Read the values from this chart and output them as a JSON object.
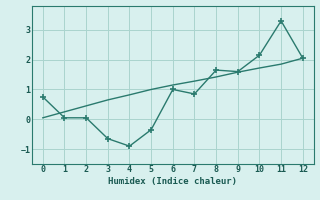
{
  "x": [
    0,
    1,
    2,
    3,
    4,
    5,
    6,
    7,
    8,
    9,
    10,
    11,
    12
  ],
  "y_curve": [
    0.75,
    0.05,
    0.05,
    -0.65,
    -0.9,
    -0.35,
    1.0,
    0.85,
    1.65,
    1.6,
    2.15,
    3.3,
    2.05
  ],
  "y_trend": [
    0.05,
    0.25,
    0.45,
    0.65,
    0.82,
    1.0,
    1.15,
    1.28,
    1.42,
    1.58,
    1.72,
    1.85,
    2.05
  ],
  "line_color": "#2a7a6e",
  "bg_color": "#d8f0ee",
  "grid_color": "#aad4ce",
  "xlabel": "Humidex (Indice chaleur)",
  "ylim": [
    -1.5,
    3.8
  ],
  "xlim": [
    -0.5,
    12.5
  ],
  "yticks": [
    -1,
    0,
    1,
    2,
    3
  ],
  "xticks": [
    0,
    1,
    2,
    3,
    4,
    5,
    6,
    7,
    8,
    9,
    10,
    11,
    12
  ],
  "font_color": "#1a5a52",
  "marker": "+",
  "marker_size": 4,
  "linewidth": 1.0,
  "font_size_ticks": 6,
  "font_size_xlabel": 6.5
}
